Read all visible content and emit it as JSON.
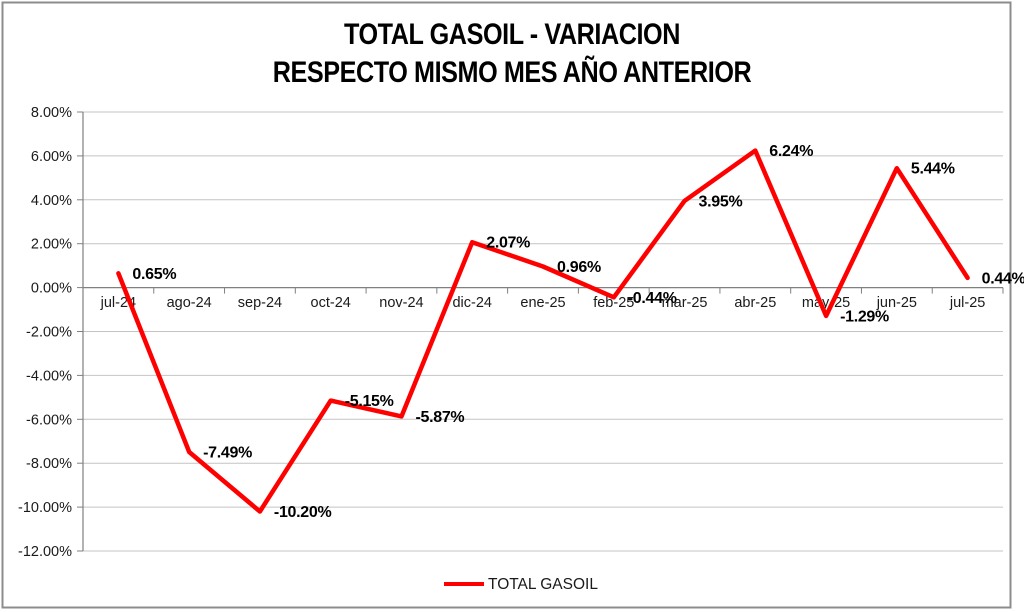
{
  "title": {
    "line1": "TOTAL GASOIL - VARIACION",
    "line2": "RESPECTO MISMO MES AÑO ANTERIOR"
  },
  "legend": {
    "label": "TOTAL GASOIL",
    "position": "bottom-center"
  },
  "colors": {
    "series_line": "#FF0000",
    "gridline": "#C4C4C4",
    "axis_line": "#808080",
    "frame_border": "#8C8C8C",
    "background": "#FFFFFF",
    "text": "#000000"
  },
  "chart_data": {
    "type": "line",
    "title": "TOTAL GASOIL - VARIACION RESPECTO MISMO MES AÑO ANTERIOR",
    "categories": [
      "jul-24",
      "ago-24",
      "sep-24",
      "oct-24",
      "nov-24",
      "dic-24",
      "ene-25",
      "feb-25",
      "mar-25",
      "abr-25",
      "may-25",
      "jun-25",
      "jul-25"
    ],
    "series": [
      {
        "name": "TOTAL GASOIL",
        "color": "#FF0000",
        "values": [
          0.65,
          -7.49,
          -10.2,
          -5.15,
          -5.87,
          2.07,
          0.96,
          -0.44,
          3.95,
          6.24,
          -1.29,
          5.44,
          0.44
        ]
      }
    ],
    "data_labels": [
      "0.65%",
      "-7.49%",
      "-10.20%",
      "-5.15%",
      "-5.87%",
      "2.07%",
      "0.96%",
      "-0.44%",
      "3.95%",
      "6.24%",
      "-1.29%",
      "5.44%",
      "0.44%"
    ],
    "ylabel": "",
    "xlabel": "",
    "ylim": [
      -12,
      8
    ],
    "y_tick_step": 2,
    "y_tick_labels": [
      "8.00%",
      "6.00%",
      "4.00%",
      "2.00%",
      "0.00%",
      "-2.00%",
      "-4.00%",
      "-6.00%",
      "-8.00%",
      "-10.00%",
      "-12.00%"
    ],
    "grid": true,
    "x_axis_cross_at": 0,
    "legend_position": "bottom"
  }
}
